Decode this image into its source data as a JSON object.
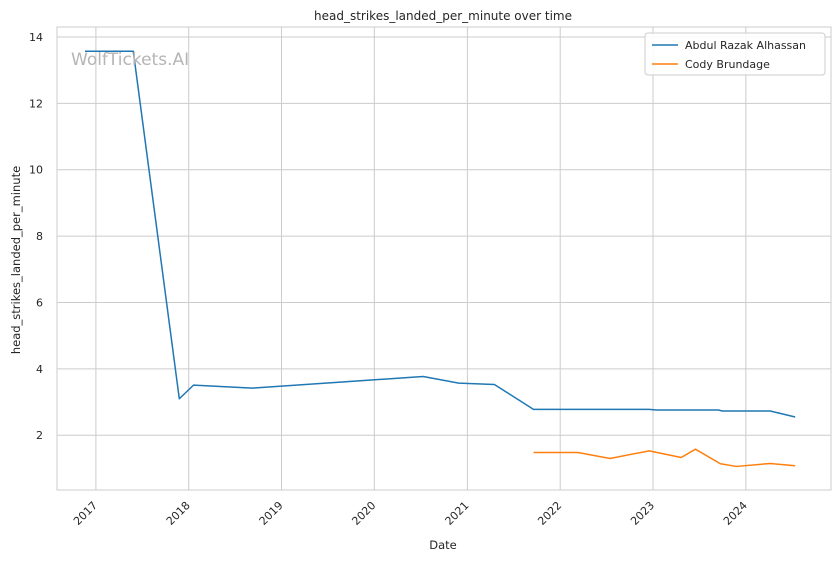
{
  "chart_data": {
    "type": "line",
    "title": "head_strikes_landed_per_minute over time",
    "xlabel": "Date",
    "ylabel": "head_strikes_landed_per_minute",
    "watermark": "WolfTickets.AI",
    "x_ticks": [
      "2017",
      "2018",
      "2019",
      "2020",
      "2021",
      "2022",
      "2023",
      "2024"
    ],
    "y_ticks": [
      "2",
      "4",
      "6",
      "8",
      "10",
      "12",
      "14"
    ],
    "xlim": [
      "2016-08-01",
      "2024-12-01"
    ],
    "ylim": [
      0.35,
      14.3
    ],
    "grid": true,
    "legend_position": "top-right",
    "series": [
      {
        "name": "Abdul Razak Alhassan",
        "color": "#1f77b4",
        "points": [
          [
            "2016-11-19",
            13.57
          ],
          [
            "2017-05-28",
            13.57
          ],
          [
            "2017-11-25",
            3.1
          ],
          [
            "2018-01-20",
            3.51
          ],
          [
            "2018-09-08",
            3.42
          ],
          [
            "2020-07-11",
            3.77
          ],
          [
            "2020-11-28",
            3.57
          ],
          [
            "2021-04-17",
            3.53
          ],
          [
            "2021-09-18",
            2.78
          ],
          [
            "2022-12-17",
            2.78
          ],
          [
            "2023-01-14",
            2.76
          ],
          [
            "2023-09-16",
            2.76
          ],
          [
            "2023-09-30",
            2.73
          ],
          [
            "2024-04-06",
            2.73
          ],
          [
            "2024-07-13",
            2.55
          ]
        ]
      },
      {
        "name": "Cody Brundage",
        "color": "#ff7f0e",
        "points": [
          [
            "2021-09-18",
            1.48
          ],
          [
            "2022-03-12",
            1.48
          ],
          [
            "2022-07-16",
            1.3
          ],
          [
            "2022-12-17",
            1.53
          ],
          [
            "2023-04-22",
            1.33
          ],
          [
            "2023-06-17",
            1.58
          ],
          [
            "2023-09-23",
            1.14
          ],
          [
            "2023-11-25",
            1.06
          ],
          [
            "2024-04-06",
            1.15
          ],
          [
            "2024-07-13",
            1.08
          ]
        ]
      }
    ]
  }
}
